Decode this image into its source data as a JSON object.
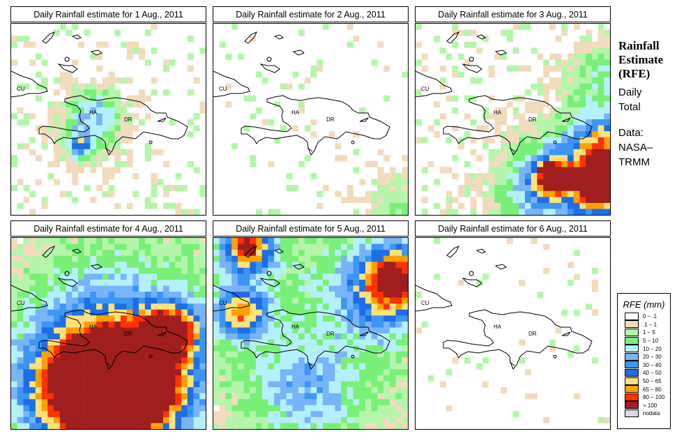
{
  "panels": [
    {
      "title": "Daily Rainfall estimate for  1 Aug., 2011"
    },
    {
      "title": "Daily Rainfall estimate for  2 Aug., 2011"
    },
    {
      "title": "Daily Rainfall estimate for  3 Aug., 2011"
    },
    {
      "title": "Daily Rainfall estimate for  4 Aug., 2011"
    },
    {
      "title": "Daily Rainfall estimate for  5 Aug., 2011"
    },
    {
      "title": "Daily Rainfall estimate for  6 Aug., 2011"
    }
  ],
  "map_labels": {
    "cuba": "CU",
    "haiti": "HA",
    "dr": "DR"
  },
  "side": {
    "title1": "Rainfall",
    "title2": "Estimate",
    "title3": "(RFE)",
    "daily1": "Daily",
    "daily2": "Total",
    "data1": "Data:",
    "data2": "NASA–",
    "data3": "TRMM"
  },
  "legend": {
    "title": "RFE (mm)",
    "items": [
      {
        "label": "0 – .1",
        "color": "#ffffff"
      },
      {
        "label": ".1 – 1",
        "color": "#f0dcbc"
      },
      {
        "label": "1 – 5",
        "color": "#b4f5aa"
      },
      {
        "label": "5 – 10",
        "color": "#78f078"
      },
      {
        "label": "10 – 20",
        "color": "#b4f0fa"
      },
      {
        "label": "20 – 30",
        "color": "#78b4fa"
      },
      {
        "label": "30 – 40",
        "color": "#3c96f5"
      },
      {
        "label": "40 – 50",
        "color": "#1e6ee6"
      },
      {
        "label": "50 – 65",
        "color": "#ffe178"
      },
      {
        "label": "65 – 80",
        "color": "#ffa000"
      },
      {
        "label": "80 – 100",
        "color": "#ff3200"
      },
      {
        "label": "> 100",
        "color": "#a01e1e"
      },
      {
        "label": "nodata",
        "color": "#dcdcdc"
      }
    ]
  }
}
